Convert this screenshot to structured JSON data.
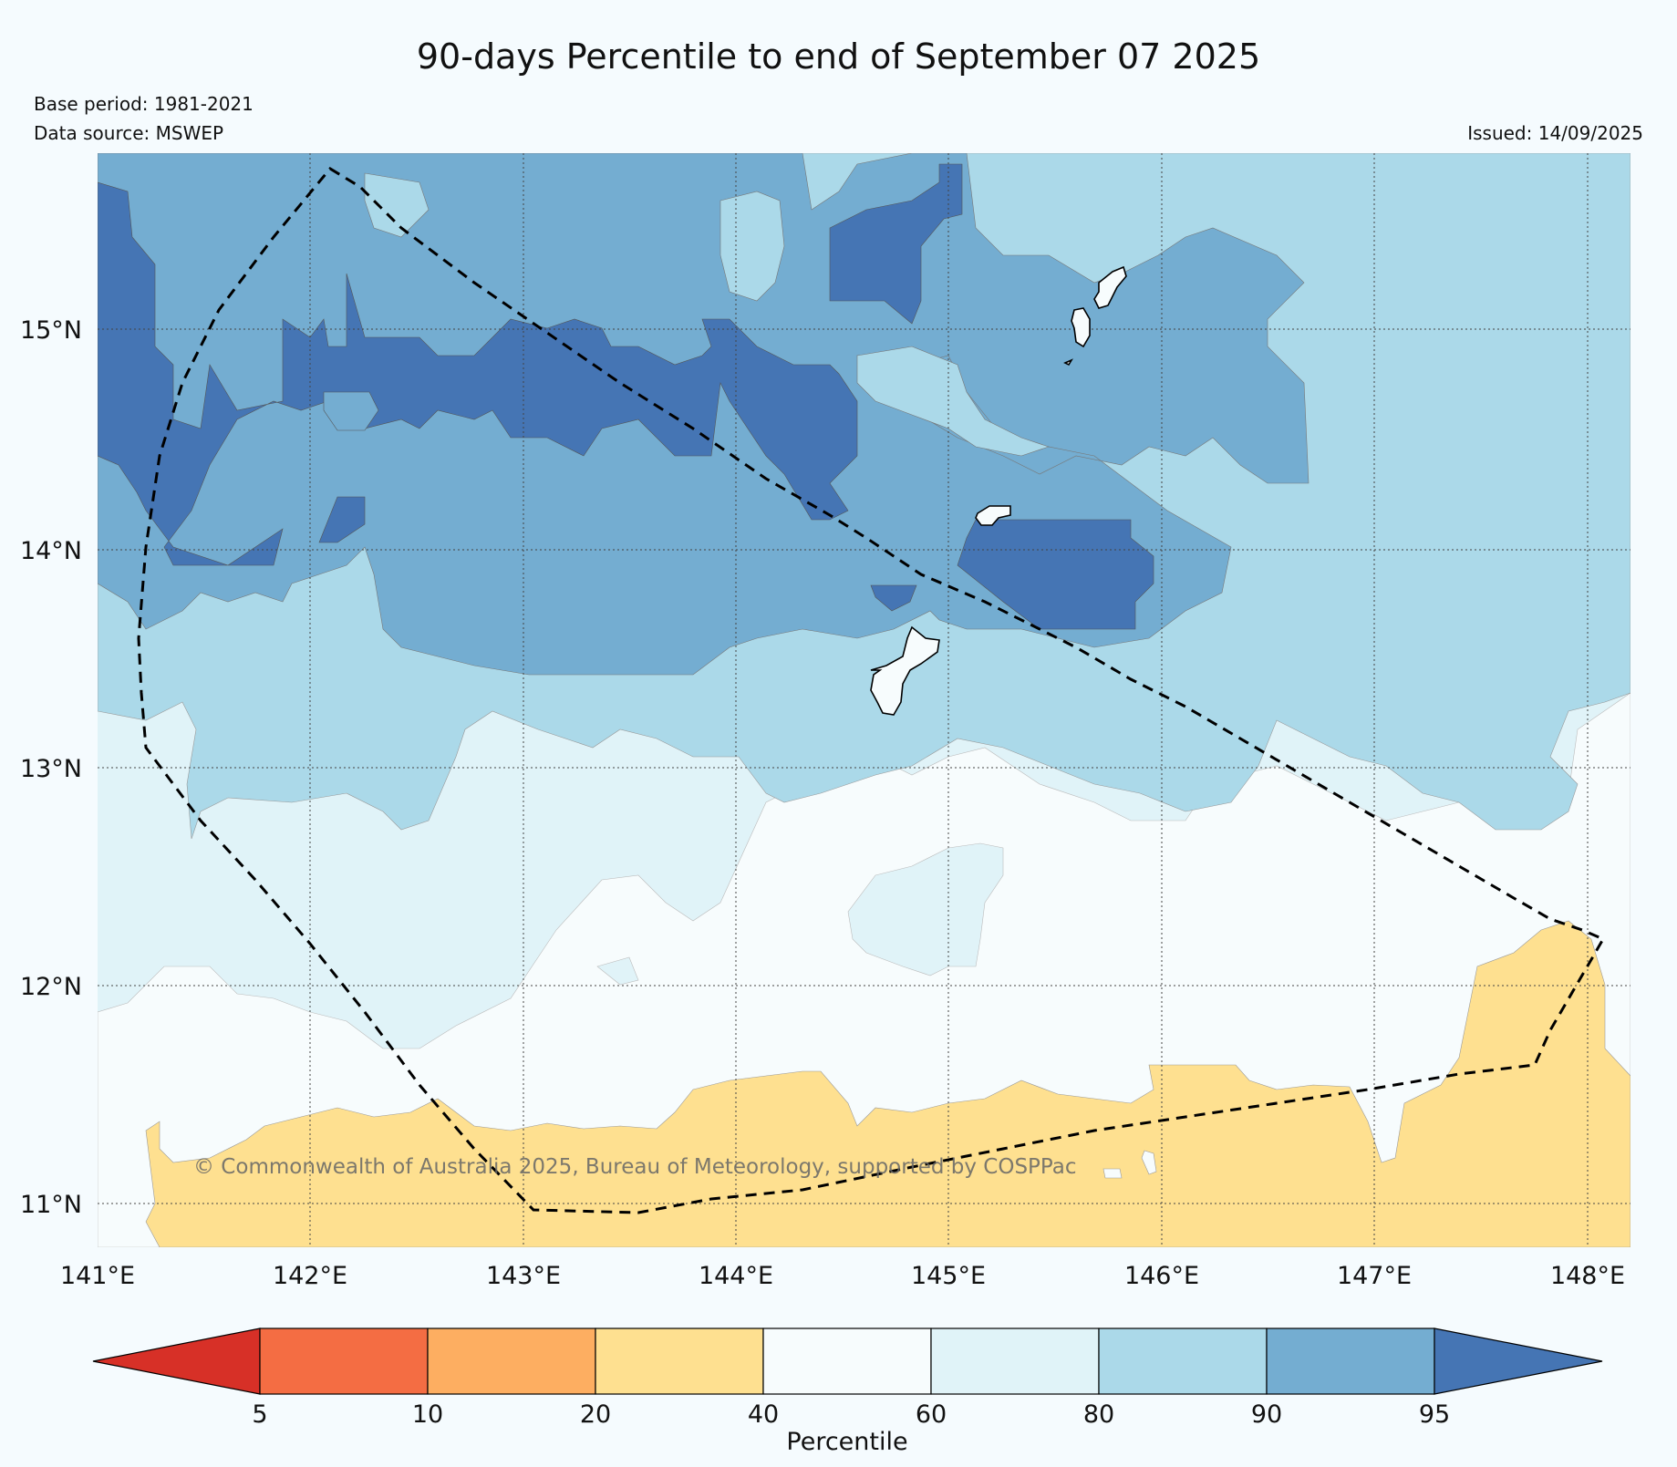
{
  "title": "90-days Percentile to end of September 07 2025",
  "base_period": "Base period: 1981-2021",
  "data_source": "Data source: MSWEP",
  "issued": "Issued: 14/09/2025",
  "copyright": "© Commonwealth of Australia 2025, Bureau of Meteorology, supported by COSPPac",
  "colors": {
    "below_5": "#d73027",
    "p5_10": "#f46d43",
    "p10_20": "#fdae61",
    "p20_40": "#fee090",
    "p40_60": "#f7fcfd",
    "p60_80": "#e0f3f8",
    "p80_90": "#abd9e9",
    "p90_95": "#74add1",
    "above_95": "#4575b4"
  },
  "map": {
    "lon_range": [
      141,
      148.2
    ],
    "lat_range": [
      10.8,
      15.82
    ],
    "gridlines": true,
    "x_ticks": [
      "141°E",
      "142°E",
      "143°E",
      "144°E",
      "145°E",
      "146°E",
      "147°E",
      "148°E"
    ],
    "y_ticks": [
      "15°N",
      "14°N",
      "13°N",
      "12°N",
      "11°N"
    ],
    "dashed_boundary": "region outline"
  },
  "colorbar": {
    "label": "Percentile",
    "ticks": [
      "5",
      "10",
      "20",
      "40",
      "60",
      "80",
      "90",
      "95"
    ],
    "extend": "both"
  }
}
